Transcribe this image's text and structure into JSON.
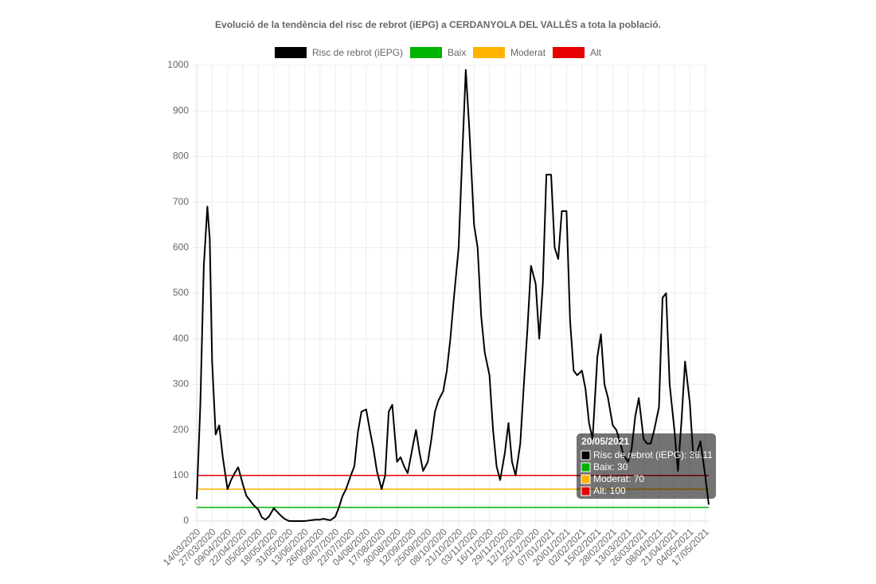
{
  "chart_data": {
    "type": "line",
    "title": "Evolució de la tendència del risc de rebrot (iEPG) a CERDANYOLA DEL VALLÈS a tota la població.",
    "x": [
      "14/03/2020",
      "17/03/2020",
      "20/03/2020",
      "23/03/2020",
      "25/03/2020",
      "27/03/2020",
      "30/03/2020",
      "02/04/2020",
      "05/04/2020",
      "09/04/2020",
      "12/04/2020",
      "15/04/2020",
      "18/04/2020",
      "22/04/2020",
      "25/04/2020",
      "28/04/2020",
      "01/05/2020",
      "05/05/2020",
      "08/05/2020",
      "11/05/2020",
      "14/05/2020",
      "18/05/2020",
      "21/05/2020",
      "24/05/2020",
      "27/05/2020",
      "31/05/2020",
      "03/06/2020",
      "06/06/2020",
      "09/06/2020",
      "13/06/2020",
      "16/06/2020",
      "19/06/2020",
      "22/06/2020",
      "26/06/2020",
      "29/06/2020",
      "02/07/2020",
      "05/07/2020",
      "09/07/2020",
      "12/07/2020",
      "15/07/2020",
      "18/07/2020",
      "22/07/2020",
      "25/07/2020",
      "28/07/2020",
      "31/07/2020",
      "04/08/2020",
      "07/08/2020",
      "10/08/2020",
      "13/08/2020",
      "17/08/2020",
      "20/08/2020",
      "23/08/2020",
      "26/08/2020",
      "30/08/2020",
      "02/09/2020",
      "05/09/2020",
      "08/09/2020",
      "12/09/2020",
      "15/09/2020",
      "18/09/2020",
      "21/09/2020",
      "25/09/2020",
      "28/09/2020",
      "01/10/2020",
      "04/10/2020",
      "08/10/2020",
      "11/10/2020",
      "14/10/2020",
      "17/10/2020",
      "21/10/2020",
      "24/10/2020",
      "27/10/2020",
      "30/10/2020",
      "03/11/2020",
      "06/11/2020",
      "09/11/2020",
      "12/11/2020",
      "16/11/2020",
      "19/11/2020",
      "22/11/2020",
      "25/11/2020",
      "29/11/2020",
      "02/12/2020",
      "05/12/2020",
      "08/12/2020",
      "12/12/2020",
      "15/12/2020",
      "18/12/2020",
      "21/12/2020",
      "25/12/2020",
      "28/12/2020",
      "31/12/2020",
      "03/01/2021",
      "07/01/2021",
      "10/01/2021",
      "13/01/2021",
      "16/01/2021",
      "20/01/2021",
      "23/01/2021",
      "26/01/2021",
      "29/01/2021",
      "02/02/2021",
      "05/02/2021",
      "08/02/2021",
      "11/02/2021",
      "15/02/2021",
      "18/02/2021",
      "21/02/2021",
      "24/02/2021",
      "28/02/2021",
      "03/03/2021",
      "06/03/2021",
      "09/03/2021",
      "13/03/2021",
      "16/03/2021",
      "19/03/2021",
      "22/03/2021",
      "26/03/2021",
      "29/03/2021",
      "01/04/2021",
      "04/04/2021",
      "08/04/2021",
      "11/04/2021",
      "14/04/2021",
      "17/04/2021",
      "21/04/2021",
      "24/04/2021",
      "27/04/2021",
      "30/04/2021",
      "04/05/2021",
      "07/05/2021",
      "10/05/2021",
      "13/05/2021",
      "17/05/2021",
      "20/05/2021"
    ],
    "series": [
      {
        "name": "Risc de rebrot (iEPG)",
        "color": "#000000",
        "values": [
          48,
          250,
          560,
          690,
          620,
          350,
          190,
          210,
          140,
          70,
          90,
          105,
          118,
          80,
          55,
          45,
          35,
          25,
          8,
          3,
          10,
          28,
          20,
          12,
          5,
          0,
          0,
          0,
          0,
          0,
          1,
          2,
          3,
          3,
          5,
          3,
          2,
          10,
          30,
          55,
          70,
          100,
          120,
          195,
          240,
          245,
          200,
          160,
          110,
          70,
          100,
          240,
          255,
          130,
          140,
          120,
          105,
          160,
          200,
          150,
          110,
          130,
          180,
          240,
          265,
          285,
          330,
          400,
          490,
          600,
          800,
          990,
          860,
          650,
          600,
          450,
          370,
          320,
          200,
          120,
          90,
          150,
          215,
          130,
          100,
          170,
          300,
          420,
          560,
          520,
          400,
          520,
          760,
          760,
          600,
          575,
          680,
          680,
          440,
          330,
          320,
          330,
          290,
          215,
          180,
          360,
          410,
          300,
          270,
          210,
          200,
          175,
          145,
          130,
          160,
          230,
          270,
          180,
          170,
          170,
          200,
          250,
          490,
          500,
          300,
          200,
          110,
          220,
          350,
          260,
          140,
          150,
          175,
          100,
          36.11
        ]
      }
    ],
    "hlines": [
      {
        "name": "Baix",
        "color": "#00b300",
        "value": 30
      },
      {
        "name": "Moderat",
        "color": "#ffb300",
        "value": 70
      },
      {
        "name": "Alt",
        "color": "#e60000",
        "value": 100
      }
    ],
    "xlim": [
      "14/03/2020",
      "20/05/2021"
    ],
    "xticks": [
      "14/03/2020",
      "27/03/2020",
      "09/04/2020",
      "22/04/2020",
      "05/05/2020",
      "18/05/2020",
      "31/05/2020",
      "13/06/2020",
      "26/06/2020",
      "09/07/2020",
      "22/07/2020",
      "04/08/2020",
      "17/08/2020",
      "30/08/2020",
      "12/09/2020",
      "25/09/2020",
      "08/10/2020",
      "21/10/2020",
      "03/11/2020",
      "16/11/2020",
      "29/11/2020",
      "12/12/2020",
      "25/12/2020",
      "07/01/2021",
      "20/01/2021",
      "02/02/2021",
      "15/02/2021",
      "28/02/2021",
      "13/03/2021",
      "26/03/2021",
      "08/04/2021",
      "21/04/2021",
      "04/05/2021",
      "17/05/2021"
    ],
    "ylim": [
      0,
      1000
    ],
    "yticks": [
      0,
      100,
      200,
      300,
      400,
      500,
      600,
      700,
      800,
      900,
      1000
    ],
    "grid": true,
    "tooltip": {
      "title": "20/05/2021",
      "items": [
        "Risc de rebrot (iEPG): 36.11",
        "Baix: 30",
        "Moderat: 70",
        "Alt: 100"
      ]
    }
  }
}
